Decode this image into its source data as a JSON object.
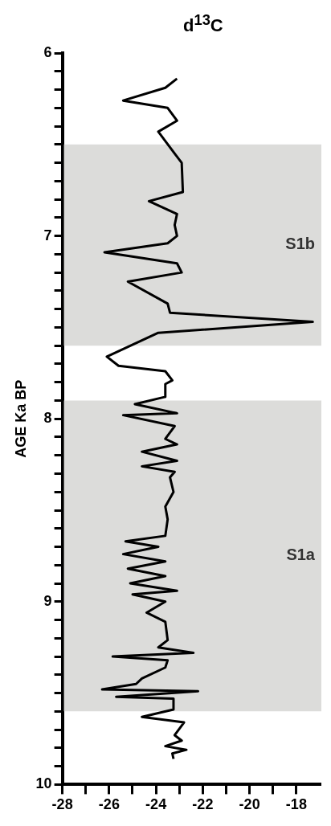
{
  "chart_data": {
    "type": "line",
    "title": "d$^{13}$C",
    "ylabel": "AGE Ka BP",
    "xlim": [
      -28,
      -17
    ],
    "xticks": [
      -28,
      {
        "value": -27,
        "label": null
      },
      -26,
      {
        "value": -25,
        "label": null
      },
      -24,
      {
        "value": -23,
        "label": null
      },
      -22,
      {
        "value": -21,
        "label": null
      },
      -20,
      {
        "value": -19,
        "label": null
      },
      -18
    ],
    "ylim": [
      10,
      6
    ],
    "yticks": [
      6,
      {
        "value": 6.1,
        "label": null
      },
      {
        "value": 6.2,
        "label": null
      },
      {
        "value": 6.3,
        "label": null
      },
      {
        "value": 6.4,
        "label": null
      },
      {
        "value": 6.5,
        "label": null
      },
      {
        "value": 6.6,
        "label": null
      },
      {
        "value": 6.7,
        "label": null
      },
      {
        "value": 6.8,
        "label": null
      },
      {
        "value": 6.9,
        "label": null
      },
      7,
      {
        "value": 7.1,
        "label": null
      },
      {
        "value": 7.2,
        "label": null
      },
      {
        "value": 7.3,
        "label": null
      },
      {
        "value": 7.4,
        "label": null
      },
      {
        "value": 7.5,
        "label": null
      },
      {
        "value": 7.6,
        "label": null
      },
      {
        "value": 7.7,
        "label": null
      },
      {
        "value": 7.8,
        "label": null
      },
      {
        "value": 7.9,
        "label": null
      },
      8,
      {
        "value": 8.1,
        "label": null
      },
      {
        "value": 8.2,
        "label": null
      },
      {
        "value": 8.3,
        "label": null
      },
      {
        "value": 8.4,
        "label": null
      },
      {
        "value": 8.5,
        "label": null
      },
      {
        "value": 8.6,
        "label": null
      },
      {
        "value": 8.7,
        "label": null
      },
      {
        "value": 8.8,
        "label": null
      },
      {
        "value": 8.9,
        "label": null
      },
      9,
      {
        "value": 9.1,
        "label": null
      },
      {
        "value": 9.2,
        "label": null
      },
      {
        "value": 9.3,
        "label": null
      },
      {
        "value": 9.4,
        "label": null
      },
      {
        "value": 9.5,
        "label": null
      },
      {
        "value": 9.6,
        "label": null
      },
      {
        "value": 9.7,
        "label": null
      },
      {
        "value": 9.8,
        "label": null
      },
      {
        "value": 9.9,
        "label": null
      },
      10
    ],
    "grid": false,
    "legend": false,
    "marker": "none",
    "line_style": "solid",
    "bands": [
      {
        "axis": "y",
        "from": 6.5,
        "to": 7.6,
        "label": "S1b",
        "color": "#dcdcda"
      },
      {
        "axis": "y",
        "from": 7.9,
        "to": 9.6,
        "label": "S1a",
        "color": "#dcdcda"
      }
    ],
    "series": [
      {
        "color": "#000000",
        "x": [
          -23.1,
          -23.6,
          -25.4,
          -23.5,
          -23.1,
          -23.9,
          -23.2,
          -22.9,
          -22.85,
          -24.3,
          -23.1,
          -23.2,
          -23.1,
          -23.5,
          -26.2,
          -23.1,
          -22.9,
          -25.2,
          -23.5,
          -23.4,
          -17.3,
          -23.9,
          -26.1,
          -25.6,
          -23.6,
          -23.3,
          -23.6,
          -23.6,
          -24.9,
          -23.1,
          -25.4,
          -23.2,
          -23.6,
          -23.1,
          -24.6,
          -23.1,
          -24.6,
          -23.2,
          -23.4,
          -23.25,
          -23.6,
          -23.5,
          -23.6,
          -25.3,
          -23.9,
          -25.4,
          -23.6,
          -25.2,
          -23.6,
          -25.1,
          -23.1,
          -25.0,
          -23.6,
          -24.4,
          -23.6,
          -23.5,
          -23.9,
          -22.4,
          -25.85,
          -23.5,
          -23.6,
          -24.6,
          -24.85,
          -26.3,
          -22.2,
          -25.7,
          -23.25,
          -23.25,
          -24.6,
          -22.8,
          -23.2,
          -22.9,
          -23.6,
          -22.7,
          -23.3,
          -23.25
        ],
        "values": [
          6.14,
          6.19,
          6.26,
          6.3,
          6.37,
          6.43,
          6.55,
          6.6,
          6.76,
          6.81,
          6.88,
          6.94,
          7.0,
          7.04,
          7.09,
          7.15,
          7.2,
          7.25,
          7.37,
          7.42,
          7.47,
          7.53,
          7.66,
          7.71,
          7.74,
          7.79,
          7.81,
          7.88,
          7.92,
          7.97,
          7.98,
          8.04,
          8.11,
          8.14,
          8.18,
          8.23,
          8.26,
          8.29,
          8.32,
          8.4,
          8.48,
          8.55,
          8.64,
          8.67,
          8.7,
          8.74,
          8.78,
          8.82,
          8.86,
          8.9,
          8.94,
          8.96,
          9.0,
          9.06,
          9.11,
          9.21,
          9.25,
          9.28,
          9.3,
          9.32,
          9.36,
          9.42,
          9.45,
          9.48,
          9.49,
          9.52,
          9.53,
          9.59,
          9.63,
          9.66,
          9.73,
          9.76,
          9.79,
          9.81,
          9.83,
          9.86
        ]
      }
    ]
  }
}
